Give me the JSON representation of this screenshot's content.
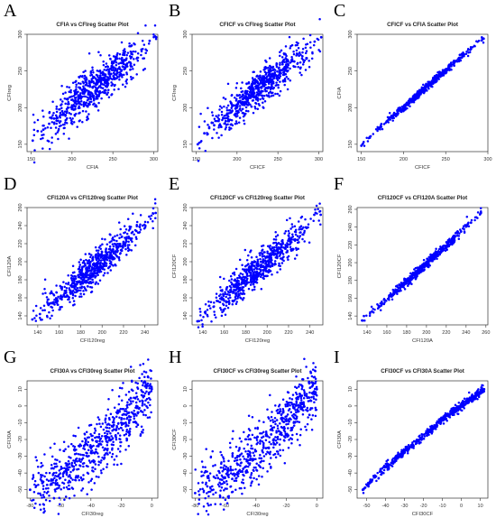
{
  "figure": {
    "panels": [
      {
        "letter": "A",
        "title": "CFIA vs CFIreg Scatter Plot",
        "xlabel": "CFIA",
        "ylabel": "CFIreg",
        "xticks": [
          150,
          200,
          250,
          300
        ],
        "yticks": [
          150,
          200,
          250,
          300
        ]
      },
      {
        "letter": "B",
        "title": "CFICF vs CFIreg Scatter Plot",
        "xlabel": "CFICF",
        "ylabel": "CFIreg",
        "xticks": [
          150,
          200,
          250,
          300
        ],
        "yticks": [
          150,
          200,
          250,
          300
        ]
      },
      {
        "letter": "C",
        "title": "CFICF vs CFIA Scatter Plot",
        "xlabel": "CFICF",
        "ylabel": "CFIA",
        "xticks": [
          150,
          200,
          250,
          300
        ],
        "yticks": [
          150,
          200,
          250,
          300
        ]
      },
      {
        "letter": "D",
        "title": "CFI120A vs CFI120reg Scatter Plot",
        "xlabel": "CFI120reg",
        "ylabel": "CFI120A",
        "xticks": [
          140,
          160,
          180,
          200,
          220,
          240
        ],
        "yticks": [
          140,
          160,
          180,
          200,
          220,
          240,
          260
        ]
      },
      {
        "letter": "E",
        "title": "CFI120CF vs CFI120reg Scatter Plot",
        "xlabel": "CFI120reg",
        "ylabel": "CFI120CF",
        "xticks": [
          140,
          160,
          180,
          200,
          220,
          240
        ],
        "yticks": [
          140,
          160,
          180,
          200,
          220,
          240,
          260
        ]
      },
      {
        "letter": "F",
        "title": "CFI120CF vs CFI120A Scatter Plot",
        "xlabel": "CFI120A",
        "ylabel": "CFI120CF",
        "xticks": [
          140,
          160,
          180,
          200,
          220,
          240,
          260
        ],
        "yticks": [
          140,
          160,
          180,
          200,
          220,
          240,
          260
        ]
      },
      {
        "letter": "G",
        "title": "CFI30A vs CFI30reg Scatter Plot",
        "xlabel": "CFI30reg",
        "ylabel": "CFI30A",
        "xticks": [
          -80,
          -60,
          -40,
          -20,
          0
        ],
        "yticks": [
          -50,
          -40,
          -30,
          -20,
          -10,
          0,
          10
        ]
      },
      {
        "letter": "H",
        "title": "CFI30CF vs CFI30reg Scatter Plot",
        "xlabel": "CFI30reg",
        "ylabel": "CFI30CF",
        "xticks": [
          -80,
          -60,
          -40,
          -20,
          0
        ],
        "yticks": [
          -50,
          -40,
          -30,
          -20,
          -10,
          0,
          10
        ]
      },
      {
        "letter": "I",
        "title": "CFI30CF vs CFI30A Scatter Plot",
        "xlabel": "CFI30CF",
        "ylabel": "CFI30A",
        "xticks": [
          -50,
          -40,
          -30,
          -20,
          -10,
          0,
          10
        ],
        "yticks": [
          -50,
          -40,
          -30,
          -20,
          -10,
          0,
          10
        ]
      }
    ]
  },
  "chart_data": [
    {
      "type": "scatter",
      "title": "CFIA vs CFIreg Scatter Plot",
      "xlabel": "CFIA",
      "ylabel": "CFIreg",
      "xlim": [
        145,
        305
      ],
      "ylim": [
        140,
        300
      ],
      "color": "#0000ff",
      "x": [
        152,
        158,
        165,
        172,
        178,
        183,
        188,
        192,
        196,
        200,
        204,
        208,
        212,
        216,
        220,
        225,
        230,
        236,
        242,
        248,
        255,
        262,
        270,
        280,
        295,
        303
      ],
      "y": [
        155,
        168,
        170,
        178,
        185,
        182,
        195,
        190,
        205,
        198,
        210,
        206,
        215,
        222,
        218,
        228,
        225,
        238,
        236,
        246,
        250,
        256,
        262,
        268,
        291,
        296
      ]
    },
    {
      "type": "scatter",
      "title": "CFICF vs CFIreg Scatter Plot",
      "xlabel": "CFICF",
      "ylabel": "CFIreg",
      "xlim": [
        145,
        305
      ],
      "ylim": [
        140,
        300
      ],
      "color": "#0000ff",
      "x": [
        152,
        160,
        166,
        172,
        178,
        183,
        188,
        192,
        196,
        200,
        204,
        208,
        212,
        216,
        220,
        225,
        230,
        236,
        242,
        248,
        255,
        262,
        270,
        280,
        295,
        303
      ],
      "y": [
        150,
        165,
        172,
        176,
        184,
        186,
        192,
        193,
        203,
        200,
        209,
        207,
        214,
        221,
        220,
        226,
        227,
        236,
        238,
        244,
        251,
        255,
        263,
        270,
        290,
        296
      ]
    },
    {
      "type": "scatter",
      "title": "CFICF vs CFIA Scatter Plot",
      "xlabel": "CFICF",
      "ylabel": "CFIA",
      "xlim": [
        145,
        300
      ],
      "ylim": [
        140,
        300
      ],
      "color": "#0000ff",
      "x": [
        150,
        160,
        170,
        180,
        190,
        200,
        210,
        220,
        230,
        240,
        250,
        260,
        270,
        280,
        295
      ],
      "y": [
        148,
        160,
        171,
        181,
        191,
        200,
        210,
        221,
        231,
        241,
        250,
        261,
        270,
        280,
        294
      ]
    },
    {
      "type": "scatter",
      "title": "CFI120A vs CFI120reg Scatter Plot",
      "xlabel": "CFI120reg",
      "ylabel": "CFI120A",
      "xlim": [
        130,
        252
      ],
      "ylim": [
        130,
        260
      ],
      "color": "#0000ff",
      "x": [
        135,
        142,
        150,
        158,
        165,
        172,
        178,
        184,
        190,
        196,
        202,
        208,
        214,
        220,
        226,
        232,
        238,
        244,
        250
      ],
      "y": [
        136,
        142,
        152,
        156,
        165,
        172,
        178,
        186,
        190,
        198,
        202,
        210,
        214,
        222,
        226,
        234,
        240,
        250,
        254
      ]
    },
    {
      "type": "scatter",
      "title": "CFI120CF vs CFI120reg Scatter Plot",
      "xlabel": "CFI120reg",
      "ylabel": "CFI120CF",
      "xlim": [
        130,
        252
      ],
      "ylim": [
        130,
        260
      ],
      "color": "#0000ff",
      "x": [
        135,
        142,
        150,
        158,
        165,
        172,
        178,
        184,
        190,
        196,
        202,
        208,
        214,
        220,
        226,
        232,
        238,
        244,
        250
      ],
      "y": [
        134,
        144,
        150,
        158,
        163,
        174,
        176,
        188,
        188,
        200,
        200,
        212,
        212,
        224,
        224,
        236,
        238,
        252,
        252
      ]
    },
    {
      "type": "scatter",
      "title": "CFI120CF vs CFI120A Scatter Plot",
      "xlabel": "CFI120A",
      "ylabel": "CFI120CF",
      "xlim": [
        130,
        262
      ],
      "ylim": [
        130,
        262
      ],
      "color": "#0000ff",
      "x": [
        135,
        145,
        155,
        165,
        175,
        185,
        195,
        205,
        215,
        225,
        235,
        245,
        255
      ],
      "y": [
        135,
        145,
        154,
        164,
        174,
        183,
        194,
        204,
        214,
        224,
        235,
        245,
        256
      ]
    },
    {
      "type": "scatter",
      "title": "CFI30A vs CFI30reg Scatter Plot",
      "xlabel": "CFI30reg",
      "ylabel": "CFI30A",
      "xlim": [
        -82,
        4
      ],
      "ylim": [
        -55,
        15
      ],
      "color": "#0000ff",
      "x": [
        -80,
        -72,
        -65,
        -58,
        -52,
        -46,
        -40,
        -35,
        -30,
        -25,
        -20,
        -15,
        -10,
        -5,
        0
      ],
      "y": [
        -50,
        -46,
        -44,
        -40,
        -36,
        -32,
        -28,
        -24,
        -18,
        -14,
        -10,
        -4,
        0,
        6,
        10
      ]
    },
    {
      "type": "scatter",
      "title": "CFI30CF vs CFI30reg Scatter Plot",
      "xlabel": "CFI30reg",
      "ylabel": "CFI30CF",
      "xlim": [
        -82,
        4
      ],
      "ylim": [
        -55,
        15
      ],
      "color": "#0000ff",
      "x": [
        -80,
        -72,
        -65,
        -58,
        -52,
        -46,
        -40,
        -35,
        -30,
        -25,
        -20,
        -15,
        -10,
        -5,
        0
      ],
      "y": [
        -52,
        -48,
        -43,
        -41,
        -35,
        -33,
        -27,
        -25,
        -17,
        -15,
        -9,
        -5,
        1,
        5,
        10
      ]
    },
    {
      "type": "scatter",
      "title": "CFI30CF vs CFI30A Scatter Plot",
      "xlabel": "CFI30CF",
      "ylabel": "CFI30A",
      "xlim": [
        -55,
        14
      ],
      "ylim": [
        -55,
        15
      ],
      "color": "#0000ff",
      "x": [
        -52,
        -45,
        -38,
        -30,
        -22,
        -15,
        -8,
        0,
        6,
        12
      ],
      "y": [
        -50,
        -42,
        -35,
        -27,
        -20,
        -13,
        -6,
        0,
        5,
        10
      ]
    }
  ]
}
